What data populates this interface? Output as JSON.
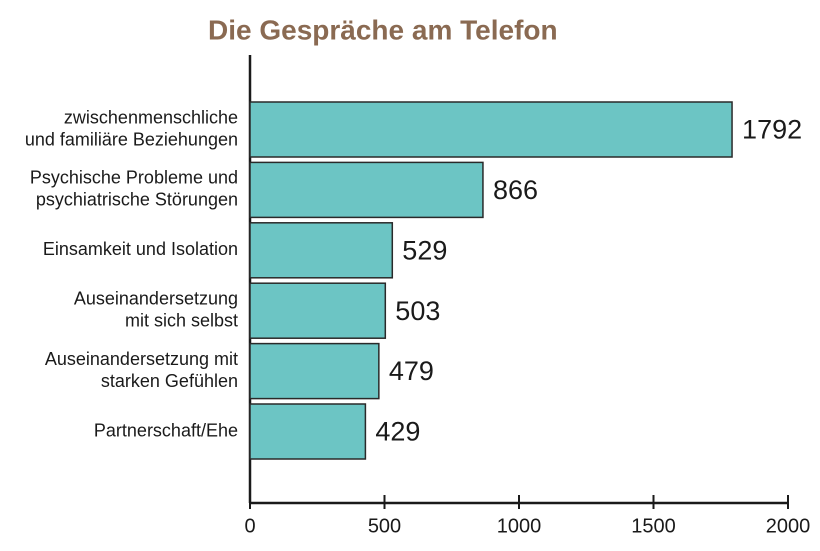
{
  "chart_data": {
    "type": "bar",
    "orientation": "horizontal",
    "title": "Die Gespräche  am Telefon",
    "categories": [
      [
        "zwischenmenschliche",
        "und familiäre Beziehungen"
      ],
      [
        "Psychische Probleme und",
        "psychiatrische Störungen"
      ],
      [
        "Einsamkeit und Isolation"
      ],
      [
        "Auseinandersetzung",
        "mit sich selbst"
      ],
      [
        "Auseinandersetzung mit",
        "starken Gefühlen"
      ],
      [
        "Partnerschaft/Ehe"
      ]
    ],
    "values": [
      1792,
      866,
      529,
      503,
      479,
      429
    ],
    "color": "#6cc5c4",
    "xlim": [
      0,
      2000
    ],
    "xticks": [
      0,
      500,
      1000,
      1500,
      2000
    ],
    "grid": false
  }
}
